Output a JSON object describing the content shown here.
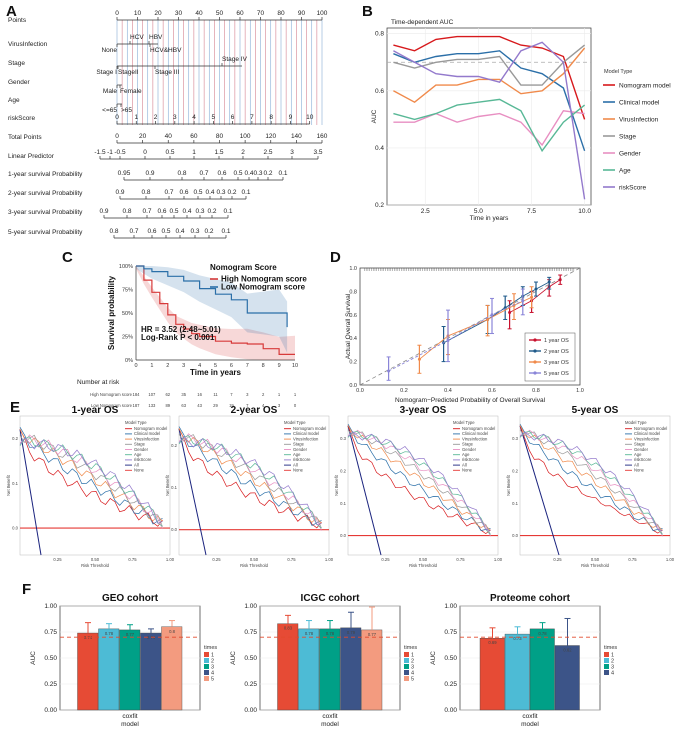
{
  "panel_labels": [
    "A",
    "B",
    "C",
    "D",
    "E",
    "F"
  ],
  "chart_data": [
    {
      "type": "table",
      "panel": "A",
      "title": "Nomogram",
      "rows": [
        {
          "label": "Points",
          "ticks": [
            "0",
            "10",
            "20",
            "30",
            "40",
            "50",
            "60",
            "70",
            "80",
            "90",
            "100"
          ]
        },
        {
          "label": "VirusInfection",
          "levels": [
            "HCV",
            "HBV",
            "None",
            "HCV&HBV"
          ]
        },
        {
          "label": "Stage",
          "levels": [
            "StageII",
            "Stage I",
            "Stage III",
            "Stage IV"
          ]
        },
        {
          "label": "Gender",
          "levels": [
            "Female",
            "Male"
          ]
        },
        {
          "label": "Age",
          "levels": [
            ">65",
            "<=65"
          ]
        },
        {
          "label": "riskScore",
          "ticks": [
            "0",
            "1",
            "2",
            "3",
            "4",
            "5",
            "6",
            "7",
            "8",
            "9",
            "10"
          ]
        },
        {
          "label": "Total Points",
          "ticks": [
            "0",
            "20",
            "40",
            "60",
            "80",
            "100",
            "120",
            "140",
            "160"
          ]
        },
        {
          "label": "Linear Predictor",
          "ticks": [
            "-1.5",
            "-1",
            "-0.5",
            "0",
            "0.5",
            "1",
            "1.5",
            "2",
            "2.5",
            "3",
            "3.5"
          ]
        },
        {
          "label": "1-year survival Probability",
          "ticks": [
            "0.95",
            "0.9",
            "0.8",
            "0.7",
            "0.6",
            "0.5",
            "0.4",
            "0.3",
            "0.2",
            "0.1"
          ]
        },
        {
          "label": "2-year survival Probability",
          "ticks": [
            "0.9",
            "0.8",
            "0.7",
            "0.6",
            "0.5",
            "0.4",
            "0.3",
            "0.2",
            "0.1"
          ]
        },
        {
          "label": "3-year survival Probability",
          "ticks": [
            "0.9",
            "0.8",
            "0.7",
            "0.6",
            "0.5",
            "0.4",
            "0.3",
            "0.2",
            "0.1"
          ]
        },
        {
          "label": "5-year survival Probability",
          "ticks": [
            "0.8",
            "0.7",
            "0.6",
            "0.5",
            "0.4",
            "0.3",
            "0.2",
            "0.1"
          ]
        }
      ]
    },
    {
      "type": "line",
      "panel": "B",
      "title": "Time-dependent AUC",
      "xlabel": "Time in years",
      "ylabel": "AUC",
      "xlim": [
        0.7,
        10.3
      ],
      "ylim": [
        0.2,
        0.82
      ],
      "xticks": [
        "2.5",
        "5.0",
        "7.5",
        "10.0"
      ],
      "yticks": [
        "0.2",
        "0.4",
        "0.6",
        "0.8"
      ],
      "legend_title": "Model Type",
      "reference_line": 0.7,
      "x": [
        1,
        2,
        3,
        4,
        5,
        6,
        7,
        8,
        9,
        10
      ],
      "series": [
        {
          "name": "Nomogram model",
          "color": "#d7191c",
          "values": [
            0.76,
            0.74,
            0.78,
            0.79,
            0.79,
            0.79,
            0.76,
            0.75,
            0.72,
            0.5
          ]
        },
        {
          "name": "Clinical model",
          "color": "#2b6fa8",
          "values": [
            0.73,
            0.7,
            0.72,
            0.73,
            0.73,
            0.74,
            0.68,
            0.66,
            0.61,
            0.39
          ]
        },
        {
          "name": "VirusInfection",
          "color": "#f08a4b",
          "values": [
            0.6,
            0.56,
            0.62,
            0.62,
            0.64,
            0.64,
            0.59,
            0.6,
            0.66,
            0.75
          ]
        },
        {
          "name": "Stage",
          "color": "#999999",
          "values": [
            0.7,
            0.68,
            0.7,
            0.71,
            0.71,
            0.72,
            0.62,
            0.62,
            0.7,
            0.76
          ]
        },
        {
          "name": "Gender",
          "color": "#e88fc2",
          "values": [
            0.49,
            0.49,
            0.52,
            0.49,
            0.51,
            0.52,
            0.49,
            0.41,
            0.53,
            0.52
          ]
        },
        {
          "name": "Age",
          "color": "#58b896",
          "values": [
            0.52,
            0.5,
            0.52,
            0.55,
            0.56,
            0.57,
            0.53,
            0.39,
            0.49,
            0.55
          ]
        },
        {
          "name": "riskScore",
          "color": "#9379cc",
          "values": [
            0.74,
            0.7,
            0.66,
            0.65,
            0.65,
            0.63,
            0.74,
            0.77,
            0.7,
            0.22
          ]
        }
      ]
    },
    {
      "type": "line",
      "panel": "C",
      "title": "Nomogram Score",
      "xlabel": "Time in years",
      "ylabel": "Survival probability",
      "xlim": [
        0,
        10
      ],
      "ylim": [
        0,
        1
      ],
      "xticks": [
        "0",
        "1",
        "2",
        "3",
        "4",
        "5",
        "6",
        "7",
        "8",
        "9",
        "10"
      ],
      "yticks": [
        "0%",
        "25%",
        "50%",
        "75%",
        "100%"
      ],
      "series": [
        {
          "name": "High Nomogram score",
          "color": "#d73a3a",
          "x": [
            0,
            0.5,
            1,
            1.5,
            2,
            2.5,
            3,
            3.5,
            4,
            5,
            6,
            7,
            8,
            9,
            10
          ],
          "values": [
            1,
            0.85,
            0.72,
            0.6,
            0.48,
            0.38,
            0.33,
            0.28,
            0.25,
            0.2,
            0.18,
            0.17,
            0.12,
            0.06,
            0.06
          ]
        },
        {
          "name": "Low Nomogram score",
          "color": "#2b6fa8",
          "x": [
            0,
            0.5,
            1,
            2,
            3,
            4,
            5,
            6,
            7,
            8,
            9,
            9.5
          ],
          "values": [
            1,
            0.97,
            0.94,
            0.89,
            0.84,
            0.76,
            0.7,
            0.64,
            0.5,
            0.5,
            0.5,
            0.35
          ]
        }
      ],
      "annotations": [
        "HR = 3.52 (2.48~5.01)",
        "Log-Rank P < 0.001"
      ],
      "risk_table": {
        "title": "Number at risk",
        "times": [
          "0",
          "1",
          "2",
          "3",
          "4",
          "5",
          "6",
          "7",
          "8",
          "9",
          "10"
        ],
        "rows": [
          {
            "label": "High Nomogram score",
            "color": "#d73a3a",
            "values": [
              "184",
              "107",
              "62",
              "35",
              "16",
              "11",
              "7",
              "3",
              "2",
              "1",
              "1"
            ]
          },
          {
            "label": "Low Nomogram score",
            "color": "#2b6fa8",
            "values": [
              "187",
              "133",
              "89",
              "63",
              "43",
              "29",
              "19",
              "7",
              "4",
              "3",
              "0"
            ]
          }
        ]
      }
    },
    {
      "type": "scatter",
      "panel": "D",
      "title": "Calibration",
      "xlabel": "Nomogram−Predicted Probability of Overall Survival",
      "ylabel": "Actual Overall Survival",
      "xlim": [
        0,
        1
      ],
      "ylim": [
        0,
        1
      ],
      "xticks": [
        "0.0",
        "0.2",
        "0.4",
        "0.6",
        "0.8",
        "1.0"
      ],
      "yticks": [
        "0.0",
        "0.2",
        "0.4",
        "0.6",
        "0.8",
        "1.0"
      ],
      "series": [
        {
          "name": "1 year OS",
          "color": "#c8102e",
          "x": [
            0.68,
            0.78,
            0.86,
            0.91
          ],
          "y": [
            0.62,
            0.72,
            0.84,
            0.9
          ],
          "ylo": [
            0.48,
            0.62,
            0.76,
            0.86
          ],
          "yhi": [
            0.72,
            0.8,
            0.9,
            0.94
          ]
        },
        {
          "name": "2 year OS",
          "color": "#1f5a8a",
          "x": [
            0.38,
            0.58,
            0.66,
            0.74,
            0.8,
            0.86
          ],
          "y": [
            0.36,
            0.56,
            0.66,
            0.76,
            0.82,
            0.88
          ],
          "ylo": [
            0.2,
            0.44,
            0.56,
            0.68,
            0.76,
            0.82
          ],
          "yhi": [
            0.5,
            0.68,
            0.76,
            0.84,
            0.88,
            0.92
          ]
        },
        {
          "name": "3 year OS",
          "color": "#f08a4b",
          "x": [
            0.27,
            0.4,
            0.58,
            0.7,
            0.78
          ],
          "y": [
            0.22,
            0.42,
            0.56,
            0.68,
            0.75
          ],
          "ylo": [
            0.1,
            0.26,
            0.42,
            0.56,
            0.66
          ],
          "yhi": [
            0.34,
            0.56,
            0.68,
            0.78,
            0.84
          ]
        },
        {
          "name": "5 year OS",
          "color": "#8a85d8",
          "x": [
            0.13,
            0.4,
            0.6,
            0.74
          ],
          "y": [
            0.12,
            0.38,
            0.6,
            0.72
          ],
          "ylo": [
            0.04,
            0.2,
            0.44,
            0.6
          ],
          "yhi": [
            0.24,
            0.64,
            0.74,
            0.82
          ]
        }
      ]
    },
    {
      "type": "line",
      "panel": "E",
      "xlabel": "Risk Threshold",
      "ylabel": "Net Benefit",
      "legend_title": "Model Type",
      "legend": [
        "Nomogram model",
        "Clinical model",
        "VirusInfection",
        "Stage",
        "Gender",
        "Age",
        "riskScore",
        "All",
        "None"
      ],
      "subplots": [
        {
          "title": "1-year OS",
          "xticks": [
            "0.25",
            "0.50",
            "0.75",
            "1.00"
          ],
          "yticks": [
            "0.0",
            "0.1",
            "0.2"
          ]
        },
        {
          "title": "2-year OS",
          "xticks": [
            "0.25",
            "0.50",
            "0.75",
            "1.00"
          ],
          "yticks": [
            "0.0",
            "0.1",
            "0.2"
          ]
        },
        {
          "title": "3-year OS",
          "xticks": [
            "0.25",
            "0.50",
            "0.75",
            "1.00"
          ],
          "yticks": [
            "0.0",
            "0.1",
            "0.2",
            "0.3"
          ]
        },
        {
          "title": "5-year OS",
          "xticks": [
            "0.25",
            "0.50",
            "0.75",
            "1.00"
          ],
          "yticks": [
            "0.0",
            "0.1",
            "0.2",
            "0.3"
          ]
        }
      ]
    },
    {
      "type": "bar",
      "panel": "F",
      "xlabel": "model",
      "ylabel": "AUC",
      "legend_title": "times",
      "reference_line": 0.7,
      "ylim": [
        0,
        1.0
      ],
      "yticks": [
        "0.00",
        "0.25",
        "0.50",
        "0.75",
        "1.00"
      ],
      "category": "coxfit",
      "colors": [
        "#e64b35",
        "#4dbbd5",
        "#00a087",
        "#3c5488",
        "#f39b7f"
      ],
      "subplots": [
        {
          "title": "GEO cohort",
          "times": [
            "1",
            "2",
            "3",
            "4",
            "5"
          ],
          "values": [
            0.74,
            0.78,
            0.77,
            0.74,
            0.8
          ],
          "labels": [
            "0.74",
            "0.78",
            "0.77",
            "0.74",
            "0.8"
          ],
          "err": [
            0.1,
            0.05,
            0.05,
            0.04,
            0.06
          ]
        },
        {
          "title": "ICGC cohort",
          "times": [
            "1",
            "2",
            "3",
            "4",
            "5"
          ],
          "values": [
            0.83,
            0.78,
            0.78,
            0.79,
            0.77
          ],
          "labels": [
            "0.83",
            "0.78",
            "0.78",
            "0.79",
            "0.77"
          ],
          "err": [
            0.08,
            0.08,
            0.08,
            0.15,
            0.22
          ]
        },
        {
          "title": "Proteome cohort",
          "times": [
            "1",
            "2",
            "3",
            "4"
          ],
          "values": [
            0.69,
            0.73,
            0.78,
            0.62
          ],
          "labels": [
            "0.69",
            "0.73",
            "0.78",
            "0.62"
          ],
          "err": [
            0.1,
            0.07,
            0.06,
            0.26
          ]
        }
      ]
    }
  ]
}
